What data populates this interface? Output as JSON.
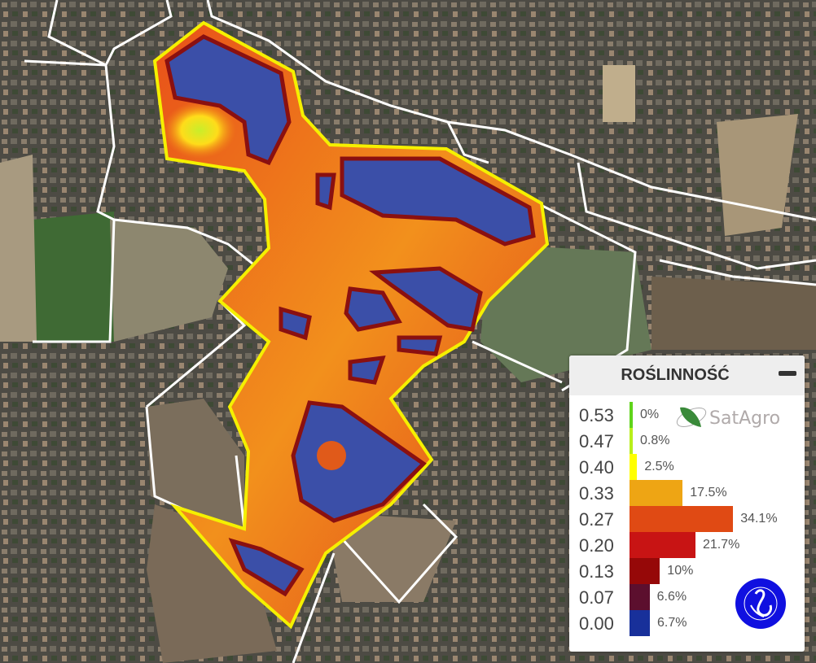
{
  "legend": {
    "title": "ROŚLINNOŚĆ",
    "minimize_icon": "minus-icon",
    "rows": [
      {
        "value": "0.53",
        "percent": "0.0",
        "label": "0%",
        "color": "#5fd41a"
      },
      {
        "value": "0.47",
        "percent": "0.8",
        "label": "0.8%",
        "color": "#b8ef1a"
      },
      {
        "value": "0.40",
        "percent": "2.5",
        "label": "2.5%",
        "color": "#ffff00"
      },
      {
        "value": "0.33",
        "percent": "17.5",
        "label": "17.5%",
        "color": "#eea514"
      },
      {
        "value": "0.27",
        "percent": "34.1",
        "label": "34.1%",
        "color": "#e04a14"
      },
      {
        "value": "0.20",
        "percent": "21.7",
        "label": "21.7%",
        "color": "#c81414"
      },
      {
        "value": "0.13",
        "percent": "10",
        "label": "10%",
        "color": "#960808"
      },
      {
        "value": "0.07",
        "percent": "6.6",
        "label": "6.6%",
        "color": "#5c0f2e"
      },
      {
        "value": "0.00",
        "percent": "6.7",
        "label": "6.7%",
        "color": "#18309a"
      }
    ],
    "logos": {
      "satagro": "SatAgro",
      "committee": "SPOŁECZNY KOMITET OCHRONY FALENICY"
    }
  },
  "map": {
    "field_outline_color": "#f5f000",
    "parcel_outline_color": "#ffffff"
  }
}
